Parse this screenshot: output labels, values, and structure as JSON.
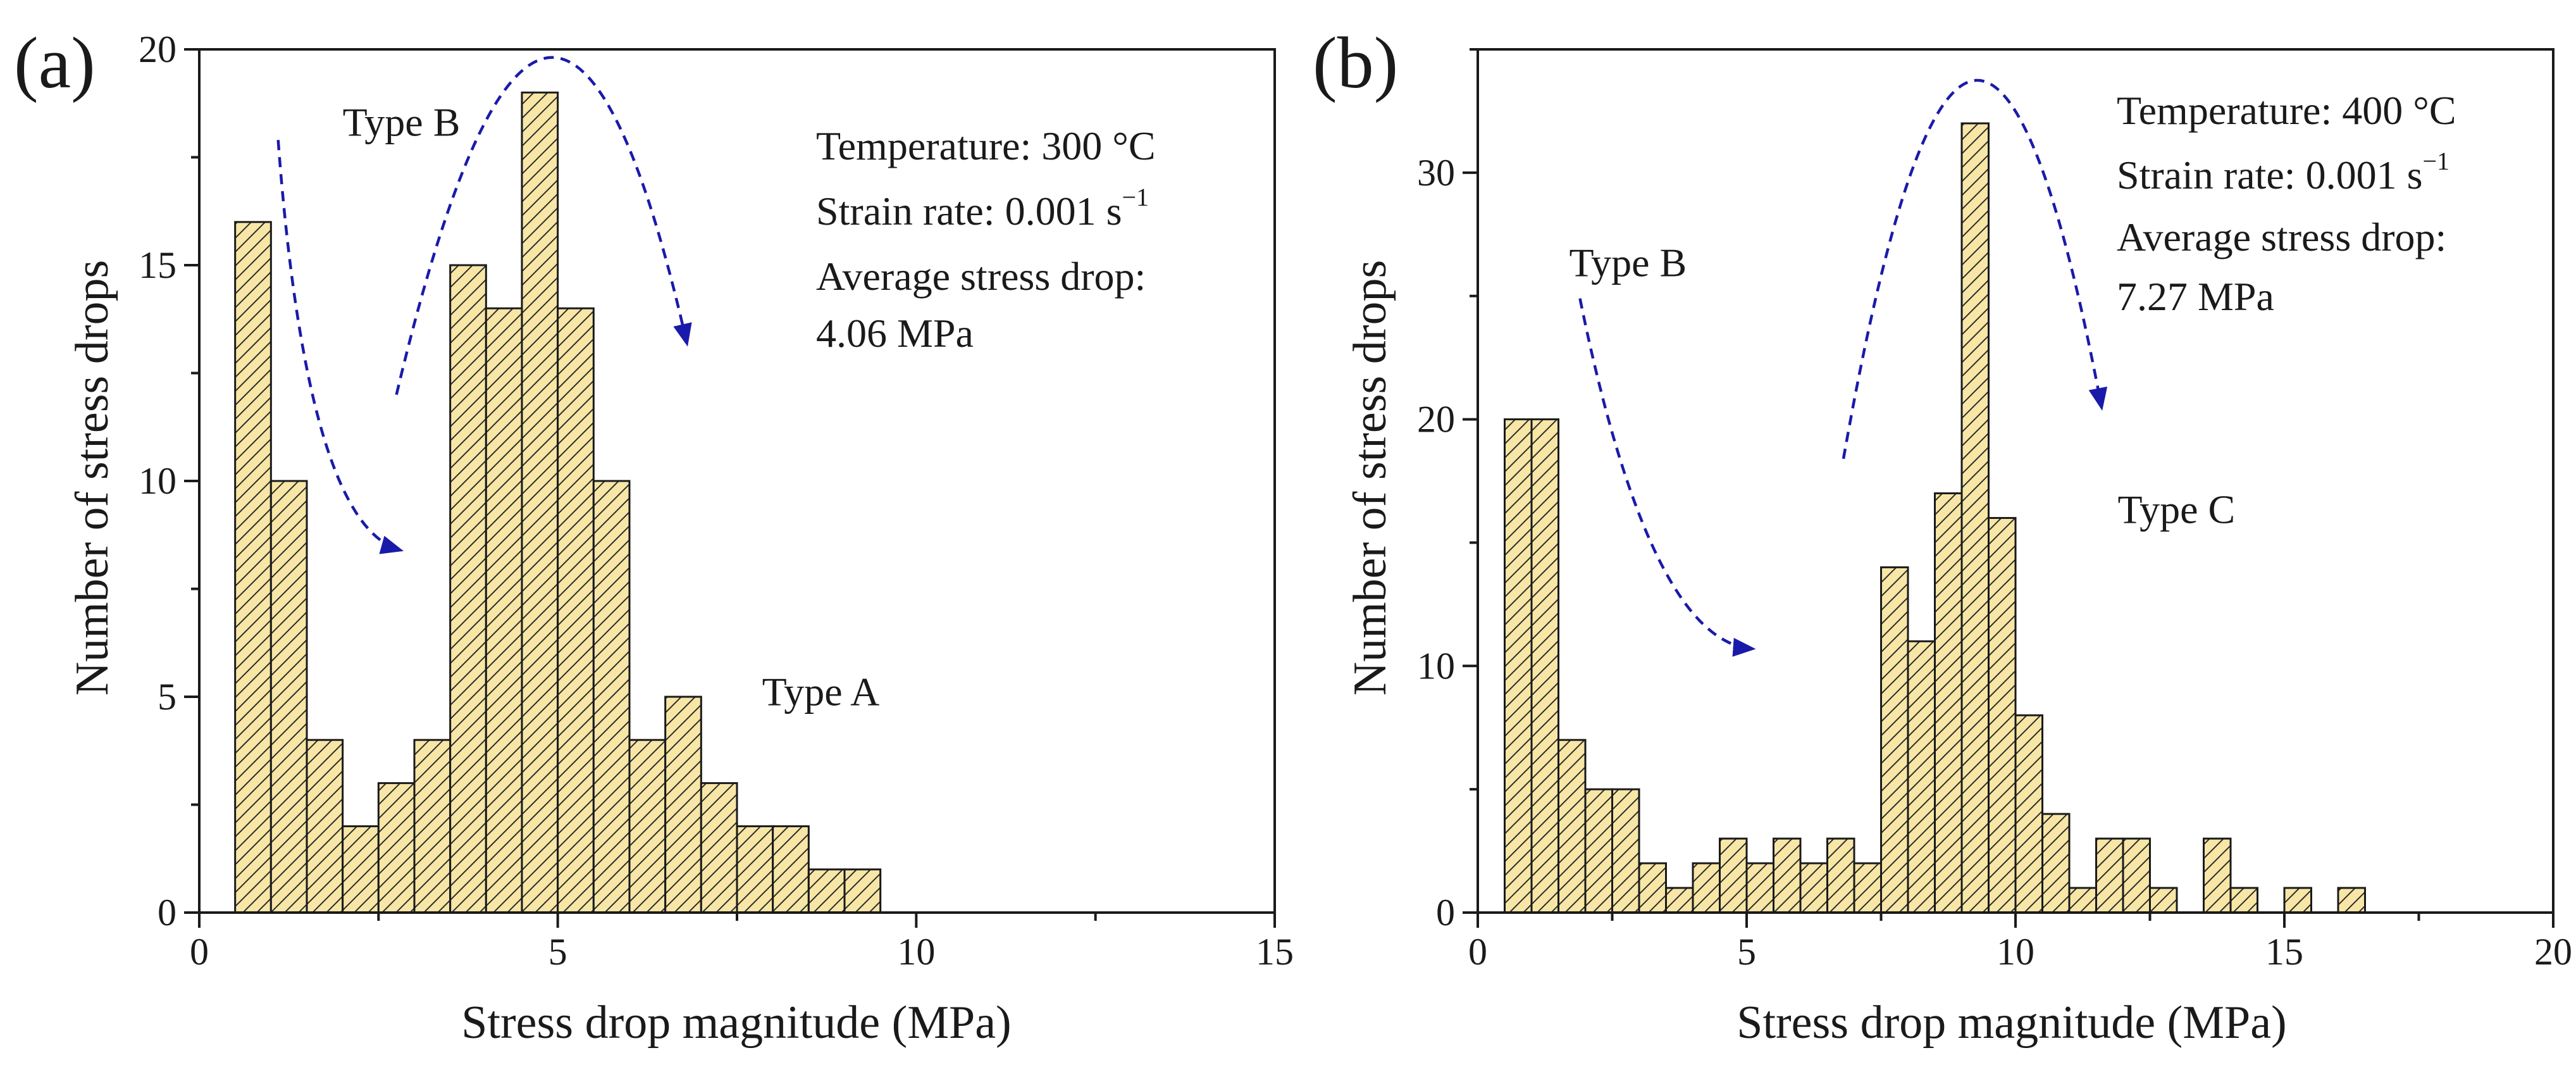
{
  "chart_data": [
    {
      "type": "bar",
      "panel_label": "(a)",
      "xlabel": "Stress drop magnitude (MPa)",
      "ylabel": "Number of stress drops",
      "xlim": [
        0,
        15
      ],
      "ylim": [
        0,
        20
      ],
      "xticks": [
        0,
        5,
        10,
        15
      ],
      "yticks": [
        0,
        5,
        10,
        15,
        20
      ],
      "bin_width": 0.5,
      "bars": [
        {
          "x": 0.75,
          "y": 16
        },
        {
          "x": 1.25,
          "y": 10
        },
        {
          "x": 1.75,
          "y": 4
        },
        {
          "x": 2.25,
          "y": 2
        },
        {
          "x": 2.75,
          "y": 3
        },
        {
          "x": 3.25,
          "y": 4
        },
        {
          "x": 3.75,
          "y": 15
        },
        {
          "x": 4.25,
          "y": 14
        },
        {
          "x": 4.75,
          "y": 19
        },
        {
          "x": 5.25,
          "y": 14
        },
        {
          "x": 5.75,
          "y": 10
        },
        {
          "x": 6.25,
          "y": 4
        },
        {
          "x": 6.75,
          "y": 5
        },
        {
          "x": 7.25,
          "y": 3
        },
        {
          "x": 7.75,
          "y": 2
        },
        {
          "x": 8.25,
          "y": 2
        },
        {
          "x": 8.75,
          "y": 1
        },
        {
          "x": 9.25,
          "y": 1
        }
      ],
      "info": {
        "temperature": "Temperature: 300 °C",
        "strain_rate": "Strain rate: 0.001 s",
        "strain_rate_exp": "−1",
        "avg_label": "Average stress drop:",
        "avg_value": "4.06 MPa"
      },
      "annotations": [
        {
          "text": "Type B",
          "x": 2.0,
          "y": 18.0
        },
        {
          "text": "Type A",
          "x": 7.85,
          "y": 4.8
        }
      ],
      "arrows": [
        {
          "name": "type-b-arrow",
          "from": [
            1.1,
            17.9
          ],
          "ctrl": [
            1.5,
            9.0
          ],
          "to": [
            2.8,
            8.4
          ]
        },
        {
          "name": "peak-arrow",
          "from": [
            2.75,
            12.0
          ],
          "ctrl": [
            4.9,
            27.0
          ],
          "to": [
            6.8,
            13.2
          ]
        }
      ]
    },
    {
      "type": "bar",
      "panel_label": "(b)",
      "xlabel": "Stress drop magnitude (MPa)",
      "ylabel": "Number of stress drops",
      "xlim": [
        0,
        20
      ],
      "ylim": [
        0,
        35
      ],
      "xticks": [
        0,
        5,
        10,
        15,
        20
      ],
      "yticks": [
        0,
        10,
        20,
        30
      ],
      "bin_width": 0.5,
      "bars": [
        {
          "x": 0.75,
          "y": 20
        },
        {
          "x": 1.25,
          "y": 20
        },
        {
          "x": 1.75,
          "y": 7
        },
        {
          "x": 2.25,
          "y": 5
        },
        {
          "x": 2.75,
          "y": 5
        },
        {
          "x": 3.25,
          "y": 2
        },
        {
          "x": 3.75,
          "y": 1
        },
        {
          "x": 4.25,
          "y": 2
        },
        {
          "x": 4.75,
          "y": 3
        },
        {
          "x": 5.25,
          "y": 2
        },
        {
          "x": 5.75,
          "y": 3
        },
        {
          "x": 6.25,
          "y": 2
        },
        {
          "x": 6.75,
          "y": 3
        },
        {
          "x": 7.25,
          "y": 2
        },
        {
          "x": 7.75,
          "y": 14
        },
        {
          "x": 8.25,
          "y": 11
        },
        {
          "x": 8.75,
          "y": 17
        },
        {
          "x": 9.25,
          "y": 32
        },
        {
          "x": 9.75,
          "y": 16
        },
        {
          "x": 10.25,
          "y": 8
        },
        {
          "x": 10.75,
          "y": 4
        },
        {
          "x": 11.25,
          "y": 1
        },
        {
          "x": 11.75,
          "y": 3
        },
        {
          "x": 12.25,
          "y": 3
        },
        {
          "x": 12.75,
          "y": 1
        },
        {
          "x": 13.75,
          "y": 3
        },
        {
          "x": 14.25,
          "y": 1
        },
        {
          "x": 15.25,
          "y": 1
        },
        {
          "x": 16.25,
          "y": 1
        }
      ],
      "info": {
        "temperature": "Temperature: 400 °C",
        "strain_rate": "Strain rate: 0.001 s",
        "strain_rate_exp": "−1",
        "avg_label": "Average stress drop:",
        "avg_value": "7.27 MPa"
      },
      "annotations": [
        {
          "text": "Type B",
          "x": 1.7,
          "y": 25.8
        },
        {
          "text": "Type C",
          "x": 11.9,
          "y": 15.8
        }
      ],
      "arrows": [
        {
          "name": "type-b-arrow",
          "from": [
            1.9,
            24.9
          ],
          "ctrl": [
            3.2,
            11.0
          ],
          "to": [
            5.1,
            10.7
          ]
        },
        {
          "name": "peak-arrow",
          "from": [
            6.8,
            18.4
          ],
          "ctrl": [
            9.2,
            48.0
          ],
          "to": [
            11.6,
            20.5
          ]
        }
      ]
    }
  ]
}
